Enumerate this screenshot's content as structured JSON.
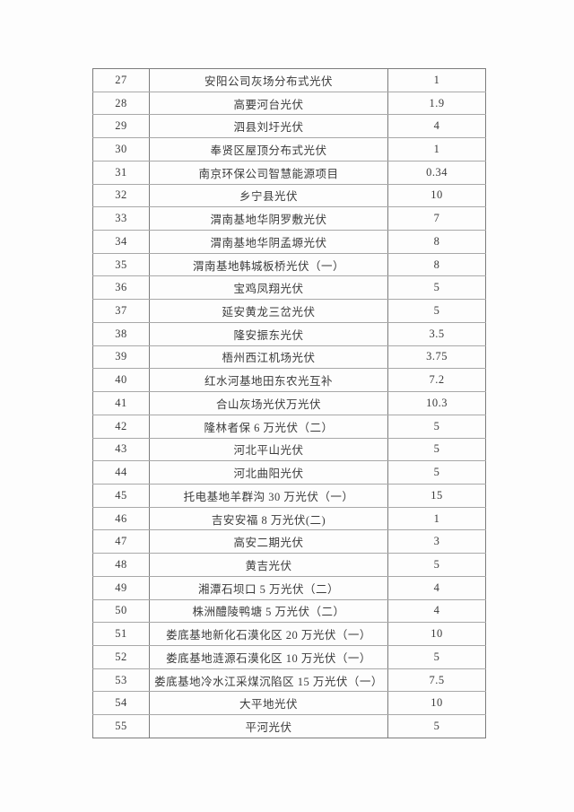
{
  "page": {
    "background_color": "#fdfdfd",
    "text_color": "#3b3b3b",
    "table_border_color": "#7c7c7c",
    "row_divider_color": "#a8a8a8"
  },
  "table": {
    "rows": [
      {
        "no": "27",
        "name": "安阳公司灰场分布式光伏",
        "value": "1"
      },
      {
        "no": "28",
        "name": "高要河台光伏",
        "value": "1.9"
      },
      {
        "no": "29",
        "name": "泗县刘圩光伏",
        "value": "4"
      },
      {
        "no": "30",
        "name": "奉贤区屋顶分布式光伏",
        "value": "1"
      },
      {
        "no": "31",
        "name": "南京环保公司智慧能源项目",
        "value": "0.34"
      },
      {
        "no": "32",
        "name": "乡宁县光伏",
        "value": "10"
      },
      {
        "no": "33",
        "name": "渭南基地华阴罗敷光伏",
        "value": "7"
      },
      {
        "no": "34",
        "name": "渭南基地华阴孟塬光伏",
        "value": "8"
      },
      {
        "no": "35",
        "name": "渭南基地韩城板桥光伏（一）",
        "value": "8"
      },
      {
        "no": "36",
        "name": "宝鸡凤翔光伏",
        "value": "5"
      },
      {
        "no": "37",
        "name": "延安黄龙三岔光伏",
        "value": "5"
      },
      {
        "no": "38",
        "name": "隆安振东光伏",
        "value": "3.5"
      },
      {
        "no": "39",
        "name": "梧州西江机场光伏",
        "value": "3.75"
      },
      {
        "no": "40",
        "name": "红水河基地田东农光互补",
        "value": "7.2"
      },
      {
        "no": "41",
        "name": "合山灰场光伏万光伏",
        "value": "10.3"
      },
      {
        "no": "42",
        "name": "隆林者保 6 万光伏（二）",
        "value": "5"
      },
      {
        "no": "43",
        "name": "河北平山光伏",
        "value": "5"
      },
      {
        "no": "44",
        "name": "河北曲阳光伏",
        "value": "5"
      },
      {
        "no": "45",
        "name": "托电基地羊群沟 30 万光伏（一）",
        "value": "15"
      },
      {
        "no": "46",
        "name": "吉安安福 8 万光伏(二)",
        "value": "1"
      },
      {
        "no": "47",
        "name": "高安二期光伏",
        "value": "3"
      },
      {
        "no": "48",
        "name": "黄吉光伏",
        "value": "5"
      },
      {
        "no": "49",
        "name": "湘潭石坝口 5 万光伏（二）",
        "value": "4"
      },
      {
        "no": "50",
        "name": "株洲醴陵鸭塘 5 万光伏（二）",
        "value": "4"
      },
      {
        "no": "51",
        "name": "娄底基地新化石漠化区 20 万光伏（一）",
        "value": "10"
      },
      {
        "no": "52",
        "name": "娄底基地涟源石漠化区 10 万光伏（一）",
        "value": "5"
      },
      {
        "no": "53",
        "name": "娄底基地冷水江采煤沉陷区 15 万光伏（一）",
        "value": "7.5"
      },
      {
        "no": "54",
        "name": "大平地光伏",
        "value": "10"
      },
      {
        "no": "55",
        "name": "平河光伏",
        "value": "5"
      }
    ]
  }
}
